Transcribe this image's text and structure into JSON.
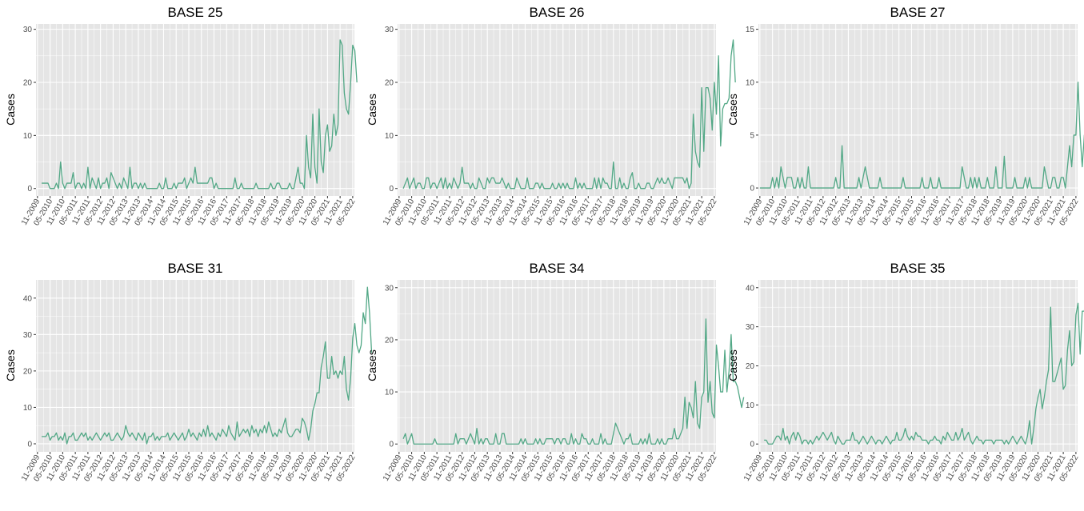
{
  "figure": {
    "line_color": "#52a886",
    "panel_background": "#e5e5e5",
    "grid_color": "#ffffff"
  },
  "chart_data": [
    {
      "type": "line",
      "title": "BASE 25",
      "ylabel": "Cases",
      "xlabel": "",
      "x_ticks": [
        "11-2009",
        "05-2010",
        "11-2010",
        "05-2011",
        "11-2011",
        "05-2012",
        "11-2012",
        "05-2013",
        "11-2013",
        "05-2014",
        "11-2014",
        "05-2015",
        "11-2015",
        "05-2016",
        "11-2016",
        "05-2017",
        "11-2017",
        "05-2018",
        "11-2018",
        "05-2019",
        "11-2019",
        "05-2020",
        "11-2020",
        "05-2021",
        "11-2021",
        "05-2022"
      ],
      "y_ticks": [
        0,
        10,
        20,
        30
      ],
      "ylim": [
        -1.4,
        31
      ],
      "x_start": "01-2010",
      "grid": true,
      "values": [
        1,
        1,
        1,
        1,
        0,
        0,
        0,
        1,
        0,
        5,
        1,
        0,
        1,
        1,
        1,
        3,
        0,
        1,
        1,
        0,
        1,
        0,
        4,
        0,
        2,
        1,
        0,
        2,
        0,
        1,
        1,
        2,
        0,
        3,
        2,
        1,
        0,
        1,
        0,
        2,
        1,
        0,
        4,
        0,
        1,
        1,
        0,
        1,
        0,
        1,
        0,
        0,
        0,
        0,
        0,
        0,
        1,
        0,
        0,
        2,
        0,
        0,
        0,
        1,
        0,
        1,
        1,
        1,
        2,
        0,
        1,
        2,
        1,
        4,
        1,
        1,
        1,
        1,
        1,
        1,
        2,
        2,
        0,
        1,
        0,
        0,
        0,
        0,
        0,
        0,
        0,
        0,
        2,
        0,
        0,
        1,
        0,
        0,
        0,
        0,
        0,
        0,
        1,
        0,
        0,
        0,
        0,
        0,
        0,
        1,
        0,
        0,
        1,
        1,
        0,
        0,
        0,
        0,
        1,
        0,
        0,
        2,
        4,
        1,
        1,
        0,
        10,
        4,
        2,
        14,
        4,
        1,
        15,
        5,
        3,
        10,
        12,
        7,
        8,
        14,
        10,
        12,
        28,
        27,
        18,
        15,
        14,
        20,
        27,
        26,
        20
      ]
    },
    {
      "type": "line",
      "title": "BASE 26",
      "ylabel": "Cases",
      "xlabel": "",
      "x_ticks": [
        "11-2009",
        "05-2010",
        "11-2010",
        "05-2011",
        "11-2011",
        "05-2012",
        "11-2012",
        "05-2013",
        "11-2013",
        "05-2014",
        "11-2014",
        "05-2015",
        "11-2015",
        "05-2016",
        "11-2016",
        "05-2017",
        "11-2017",
        "05-2018",
        "11-2018",
        "05-2019",
        "11-2019",
        "05-2020",
        "11-2020",
        "05-2021",
        "11-2021",
        "05-2022"
      ],
      "y_ticks": [
        0,
        10,
        20,
        30
      ],
      "ylim": [
        -1.4,
        31
      ],
      "x_start": "01-2010",
      "grid": true,
      "values": [
        0,
        1,
        2,
        0,
        1,
        2,
        0,
        1,
        1,
        0,
        0,
        2,
        2,
        0,
        1,
        1,
        0,
        1,
        2,
        0,
        2,
        0,
        1,
        0,
        2,
        1,
        0,
        1,
        4,
        1,
        1,
        1,
        0,
        1,
        0,
        0,
        2,
        1,
        0,
        0,
        2,
        1,
        2,
        2,
        1,
        1,
        1,
        2,
        1,
        0,
        1,
        0,
        0,
        0,
        2,
        1,
        0,
        0,
        0,
        2,
        0,
        0,
        0,
        1,
        1,
        0,
        1,
        0,
        0,
        0,
        0,
        1,
        0,
        0,
        1,
        0,
        1,
        0,
        1,
        0,
        0,
        0,
        2,
        0,
        1,
        0,
        1,
        0,
        0,
        0,
        0,
        2,
        0,
        2,
        0,
        2,
        1,
        1,
        0,
        0,
        5,
        0,
        0,
        2,
        0,
        1,
        0,
        0,
        2,
        3,
        0,
        0,
        1,
        0,
        0,
        0,
        1,
        1,
        0,
        0,
        1,
        2,
        1,
        2,
        1,
        1,
        2,
        1,
        0,
        2,
        2,
        2,
        2,
        2,
        1,
        2,
        0,
        1,
        14,
        7,
        5,
        4,
        19,
        7,
        19,
        19,
        17,
        11,
        20,
        14,
        25,
        8,
        15,
        16,
        16,
        17,
        25,
        28,
        20
      ]
    },
    {
      "type": "line",
      "title": "BASE 27",
      "ylabel": "Cases",
      "xlabel": "",
      "x_ticks": [
        "11-2009",
        "05-2010",
        "11-2010",
        "05-2011",
        "11-2011",
        "05-2012",
        "11-2012",
        "05-2013",
        "11-2013",
        "05-2014",
        "11-2014",
        "05-2015",
        "11-2015",
        "05-2016",
        "11-2016",
        "05-2017",
        "11-2017",
        "05-2018",
        "11-2018",
        "05-2019",
        "11-2019",
        "05-2020",
        "11-2020",
        "05-2021",
        "11-2021",
        "05-2022"
      ],
      "y_ticks": [
        0,
        5,
        10,
        15
      ],
      "ylim": [
        -0.75,
        15.5
      ],
      "x_start": "11-2009",
      "grid": true,
      "values": [
        0,
        0,
        0,
        0,
        0,
        0,
        1,
        0,
        1,
        0,
        2,
        1,
        0,
        1,
        1,
        1,
        0,
        0,
        1,
        0,
        1,
        0,
        0,
        2,
        0,
        0,
        0,
        0,
        0,
        0,
        0,
        0,
        0,
        0,
        0,
        0,
        1,
        0,
        0,
        4,
        0,
        0,
        0,
        0,
        0,
        0,
        0,
        1,
        0,
        1,
        2,
        1,
        0,
        0,
        0,
        0,
        0,
        1,
        0,
        0,
        0,
        0,
        0,
        0,
        0,
        0,
        0,
        0,
        1,
        0,
        0,
        0,
        0,
        0,
        0,
        0,
        0,
        1,
        0,
        0,
        0,
        1,
        0,
        0,
        0,
        1,
        0,
        0,
        0,
        0,
        0,
        0,
        0,
        0,
        0,
        0,
        2,
        1,
        0,
        0,
        1,
        0,
        1,
        0,
        1,
        0,
        0,
        0,
        1,
        0,
        0,
        0,
        2,
        0,
        0,
        0,
        3,
        0,
        0,
        0,
        0,
        1,
        0,
        0,
        0,
        0,
        1,
        0,
        1,
        0,
        0,
        0,
        0,
        0,
        0,
        2,
        1,
        0,
        0,
        1,
        1,
        0,
        0,
        1,
        1,
        0,
        2,
        4,
        2,
        5,
        5,
        10,
        5,
        2,
        5,
        4,
        8,
        3,
        4,
        4,
        2,
        4,
        7,
        5,
        6,
        2,
        4,
        4,
        5,
        4,
        5,
        6,
        10,
        8,
        6,
        3,
        7,
        6
      ]
    },
    {
      "type": "line",
      "title": "BASE 31",
      "ylabel": "Cases",
      "xlabel": "",
      "x_ticks": [
        "11-2009",
        "05-2010",
        "11-2010",
        "05-2011",
        "11-2011",
        "05-2012",
        "11-2012",
        "05-2013",
        "11-2013",
        "05-2014",
        "11-2014",
        "05-2015",
        "11-2015",
        "05-2016",
        "11-2016",
        "05-2017",
        "11-2017",
        "05-2018",
        "11-2018",
        "05-2019",
        "11-2019",
        "05-2020",
        "11-2020",
        "05-2021",
        "11-2021",
        "05-2022"
      ],
      "y_ticks": [
        0,
        10,
        20,
        30,
        40
      ],
      "ylim": [
        -2.2,
        45
      ],
      "x_start": "01-2010",
      "grid": true,
      "values": [
        2,
        2,
        2,
        3,
        1,
        2,
        2,
        3,
        1,
        2,
        1,
        3,
        0,
        2,
        2,
        3,
        1,
        1,
        2,
        3,
        2,
        3,
        1,
        2,
        1,
        2,
        3,
        2,
        1,
        2,
        3,
        2,
        3,
        1,
        1,
        2,
        3,
        2,
        1,
        2,
        5,
        3,
        2,
        3,
        2,
        1,
        3,
        2,
        1,
        3,
        0,
        2,
        2,
        3,
        1,
        2,
        1,
        2,
        2,
        2,
        3,
        1,
        2,
        3,
        2,
        1,
        2,
        3,
        1,
        2,
        4,
        2,
        3,
        2,
        1,
        3,
        2,
        4,
        2,
        5,
        2,
        3,
        2,
        1,
        3,
        2,
        4,
        3,
        2,
        5,
        3,
        2,
        1,
        6,
        2,
        3,
        4,
        3,
        4,
        2,
        5,
        3,
        4,
        2,
        4,
        3,
        5,
        3,
        6,
        4,
        2,
        3,
        2,
        4,
        3,
        5,
        7,
        3,
        2,
        2,
        3,
        4,
        4,
        3,
        7,
        6,
        4,
        1,
        4,
        9,
        11,
        14,
        14,
        21,
        24,
        28,
        18,
        18,
        24,
        19,
        20,
        18,
        20,
        19,
        24,
        15,
        12,
        18,
        29,
        33,
        27,
        25,
        27,
        36,
        33,
        43,
        36,
        25
      ]
    },
    {
      "type": "line",
      "title": "BASE 34",
      "ylabel": "Cases",
      "xlabel": "",
      "x_ticks": [
        "11-2009",
        "05-2010",
        "11-2010",
        "05-2011",
        "11-2011",
        "05-2012",
        "11-2012",
        "05-2013",
        "11-2013",
        "05-2014",
        "11-2014",
        "05-2015",
        "11-2015",
        "05-2016",
        "11-2016",
        "05-2017",
        "11-2017",
        "05-2018",
        "11-2018",
        "05-2019",
        "11-2019",
        "05-2020",
        "11-2020",
        "05-2021",
        "11-2021",
        "05-2022"
      ],
      "y_ticks": [
        0,
        10,
        20,
        30
      ],
      "ylim": [
        -1.5,
        31.5
      ],
      "x_start": "01-2010",
      "grid": true,
      "values": [
        1,
        2,
        0,
        1,
        2,
        0,
        0,
        0,
        0,
        0,
        0,
        0,
        0,
        0,
        0,
        1,
        0,
        0,
        0,
        0,
        0,
        0,
        0,
        0,
        0,
        2,
        0,
        1,
        1,
        1,
        0,
        1,
        2,
        1,
        0,
        3,
        0,
        1,
        0,
        1,
        1,
        0,
        0,
        0,
        2,
        0,
        0,
        2,
        2,
        0,
        0,
        0,
        0,
        0,
        0,
        0,
        1,
        0,
        1,
        0,
        0,
        0,
        0,
        1,
        0,
        1,
        0,
        0,
        1,
        1,
        1,
        1,
        0,
        1,
        1,
        0,
        1,
        1,
        0,
        0,
        2,
        0,
        1,
        0,
        0,
        2,
        1,
        1,
        0,
        0,
        1,
        0,
        0,
        0,
        2,
        0,
        1,
        0,
        0,
        0,
        2,
        4,
        3,
        2,
        1,
        0,
        1,
        1,
        2,
        0,
        0,
        0,
        0,
        1,
        0,
        1,
        0,
        2,
        0,
        0,
        0,
        1,
        0,
        1,
        0,
        0,
        1,
        1,
        1,
        3,
        1,
        1,
        2,
        3,
        9,
        3,
        8,
        7,
        5,
        12,
        4,
        3,
        9,
        10,
        24,
        8,
        12,
        6,
        5,
        19,
        15,
        10,
        10,
        18,
        10,
        14,
        21,
        12,
        12,
        11,
        9,
        7,
        9
      ]
    },
    {
      "type": "line",
      "title": "BASE 35",
      "ylabel": "Cases",
      "xlabel": "",
      "x_ticks": [
        "11-2009",
        "05-2010",
        "11-2010",
        "05-2011",
        "11-2011",
        "05-2012",
        "11-2012",
        "05-2013",
        "11-2013",
        "05-2014",
        "11-2014",
        "05-2015",
        "11-2015",
        "05-2016",
        "11-2016",
        "05-2017",
        "11-2017",
        "05-2018",
        "11-2018",
        "05-2019",
        "11-2019",
        "05-2020",
        "11-2020",
        "05-2021",
        "11-2021",
        "05-2022"
      ],
      "y_ticks": [
        0,
        10,
        20,
        30,
        40
      ],
      "ylim": [
        -2,
        42
      ],
      "x_start": "01-2010",
      "grid": true,
      "values": [
        1,
        1,
        0,
        0,
        0,
        1,
        2,
        2,
        1,
        4,
        1,
        2,
        0,
        2,
        3,
        1,
        3,
        2,
        0,
        1,
        1,
        0,
        1,
        0,
        1,
        2,
        1,
        2,
        3,
        2,
        1,
        2,
        3,
        1,
        0,
        2,
        1,
        0,
        0,
        1,
        1,
        1,
        3,
        1,
        1,
        0,
        1,
        2,
        1,
        0,
        1,
        2,
        1,
        0,
        1,
        1,
        0,
        1,
        2,
        1,
        0,
        1,
        1,
        3,
        1,
        1,
        2,
        4,
        2,
        1,
        2,
        1,
        3,
        2,
        2,
        1,
        1,
        1,
        0,
        1,
        1,
        2,
        1,
        1,
        0,
        2,
        1,
        3,
        2,
        1,
        1,
        3,
        1,
        2,
        4,
        1,
        2,
        3,
        1,
        0,
        1,
        2,
        1,
        1,
        0,
        1,
        1,
        1,
        1,
        0,
        1,
        1,
        1,
        1,
        0,
        1,
        0,
        1,
        2,
        1,
        0,
        1,
        2,
        1,
        0,
        2,
        6,
        0,
        4,
        9,
        12,
        14,
        9,
        12,
        16,
        19,
        35,
        16,
        16,
        18,
        20,
        22,
        14,
        15,
        24,
        29,
        20,
        21,
        33,
        36,
        23,
        34,
        34,
        40,
        31,
        40,
        35,
        19,
        26
      ]
    }
  ]
}
